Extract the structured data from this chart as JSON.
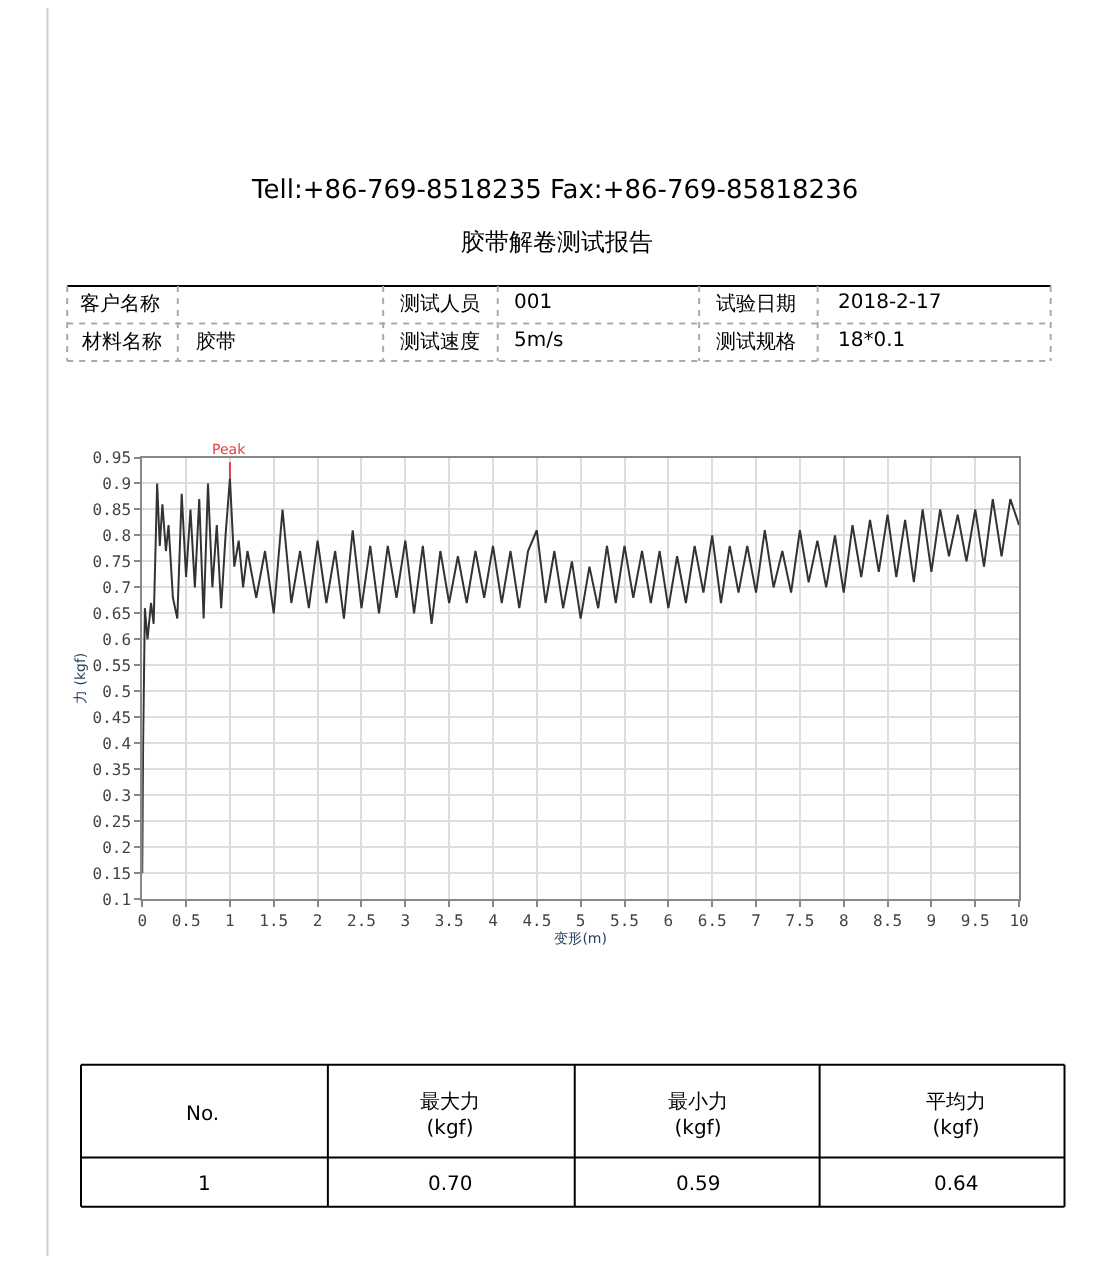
{
  "chart_data": {
    "type": "line",
    "title": "胶带解卷测试报告",
    "xlabel": "变形(m)",
    "ylabel": "力 (kgf)",
    "annotations": [
      "Tell:+86-769-8518235 Fax:+86-769-85818236",
      "客户名称",
      "测试人员",
      "001",
      "试验日期",
      "2018-2-17",
      "材料名称",
      "胶带",
      "测试速度",
      "5m/s",
      "测试规格",
      "18*0.1",
      "No.",
      "最大力\n(kgf)",
      "最小力\n(kgf)",
      "平均力\n(kgf)",
      "1",
      "0.70",
      "0.59",
      "0.64",
      {
        "text": "Peak",
        "x": 1,
        "y": 0.91
      }
    ],
    "series": [
      {
        "color": "#333333",
        "x": [
          0,
          0.01,
          0.03,
          0.06,
          0.1,
          0.13,
          0.17,
          0.2,
          0.23,
          0.27,
          0.3,
          0.35,
          0.4,
          0.45,
          0.5,
          0.55,
          0.6,
          0.65,
          0.7,
          0.75,
          0.8,
          0.85,
          0.9,
          0.95,
          1.0,
          1.05,
          1.1,
          1.15,
          1.2,
          1.3,
          1.4,
          1.5,
          1.6,
          1.7,
          1.8,
          1.9,
          2.0,
          2.1,
          2.2,
          2.3,
          2.4,
          2.5,
          2.6,
          2.7,
          2.8,
          2.9,
          3.0,
          3.1,
          3.2,
          3.3,
          3.4,
          3.5,
          3.6,
          3.7,
          3.8,
          3.9,
          4.0,
          4.1,
          4.2,
          4.3,
          4.4,
          4.5,
          4.6,
          4.7,
          4.8,
          4.9,
          5.0,
          5.1,
          5.2,
          5.3,
          5.4,
          5.5,
          5.6,
          5.7,
          5.8,
          5.9,
          6.0,
          6.1,
          6.2,
          6.3,
          6.4,
          6.5,
          6.6,
          6.7,
          6.8,
          6.9,
          7.0,
          7.1,
          7.2,
          7.3,
          7.4,
          7.5,
          7.6,
          7.7,
          7.8,
          7.9,
          8.0,
          8.1,
          8.2,
          8.3,
          8.4,
          8.5,
          8.6,
          8.7,
          8.8,
          8.9,
          9.0,
          9.1,
          9.2,
          9.3,
          9.4,
          9.5,
          9.6,
          9.7,
          9.8,
          9.9,
          10.0
        ],
        "values": [
          0.15,
          0.4,
          0.66,
          0.6,
          0.67,
          0.63,
          0.9,
          0.78,
          0.86,
          0.77,
          0.82,
          0.68,
          0.64,
          0.88,
          0.72,
          0.85,
          0.7,
          0.87,
          0.64,
          0.9,
          0.7,
          0.82,
          0.66,
          0.8,
          0.91,
          0.74,
          0.79,
          0.7,
          0.77,
          0.68,
          0.77,
          0.65,
          0.85,
          0.67,
          0.77,
          0.66,
          0.79,
          0.67,
          0.77,
          0.64,
          0.81,
          0.66,
          0.78,
          0.65,
          0.78,
          0.68,
          0.79,
          0.65,
          0.78,
          0.63,
          0.77,
          0.67,
          0.76,
          0.67,
          0.77,
          0.68,
          0.78,
          0.67,
          0.77,
          0.66,
          0.77,
          0.81,
          0.67,
          0.77,
          0.66,
          0.75,
          0.64,
          0.74,
          0.66,
          0.78,
          0.67,
          0.78,
          0.68,
          0.77,
          0.67,
          0.77,
          0.66,
          0.76,
          0.67,
          0.78,
          0.69,
          0.8,
          0.67,
          0.78,
          0.69,
          0.78,
          0.69,
          0.81,
          0.7,
          0.77,
          0.69,
          0.81,
          0.71,
          0.79,
          0.7,
          0.8,
          0.69,
          0.82,
          0.72,
          0.83,
          0.73,
          0.84,
          0.72,
          0.83,
          0.71,
          0.85,
          0.73,
          0.85,
          0.76,
          0.84,
          0.75,
          0.85,
          0.74,
          0.87,
          0.76,
          0.87,
          0.82
        ]
      }
    ],
    "xlim": [
      0,
      10
    ],
    "xticks": [
      0,
      0.5,
      1,
      1.5,
      2,
      2.5,
      3,
      3.5,
      4,
      4.5,
      5,
      5.5,
      6,
      6.5,
      7,
      7.5,
      8,
      8.5,
      9,
      9.5,
      10
    ],
    "ylim": [
      0.1,
      0.95
    ],
    "yticks": [
      0.1,
      0.15,
      0.2,
      0.25,
      0.3,
      0.35,
      0.4,
      0.45,
      0.5,
      0.55,
      0.6,
      0.65,
      0.7,
      0.75,
      0.8,
      0.85,
      0.9,
      0.95
    ],
    "grid": true,
    "line_style": "solid",
    "marker": "none"
  }
}
